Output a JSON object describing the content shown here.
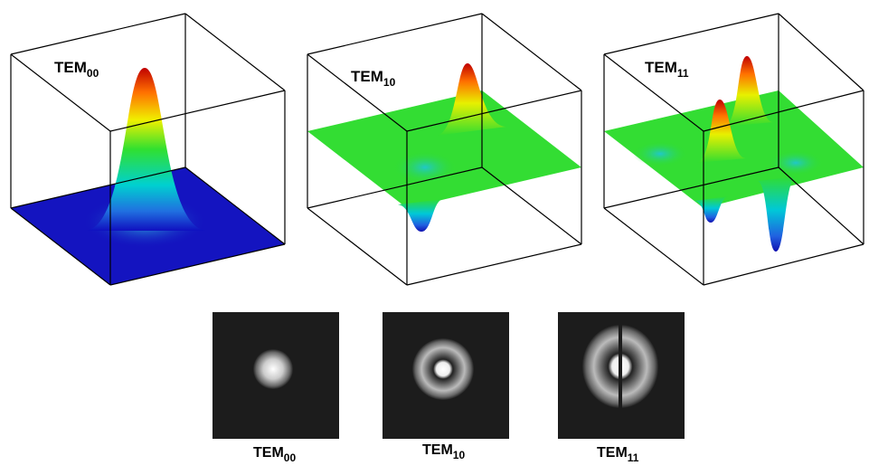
{
  "plots": [
    {
      "label": "TEM",
      "subscript": "00"
    },
    {
      "label": "TEM",
      "subscript": "10"
    },
    {
      "label": "TEM",
      "subscript": "11"
    }
  ],
  "images": [
    {
      "label": "TEM",
      "subscript": "00"
    },
    {
      "label": "TEM",
      "subscript": "10"
    },
    {
      "label": "TEM",
      "subscript": "11"
    }
  ]
}
